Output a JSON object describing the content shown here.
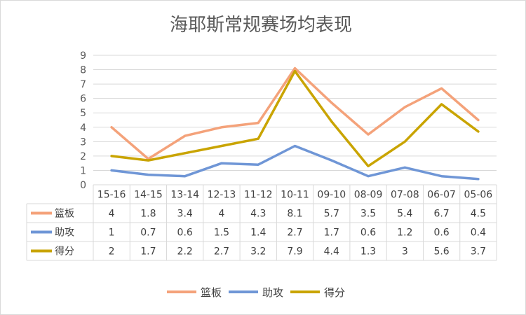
{
  "chart_data": {
    "type": "line",
    "title": "海耶斯常规赛场均表现",
    "categories": [
      "15-16",
      "14-15",
      "13-14",
      "12-13",
      "11-12",
      "10-11",
      "09-10",
      "08-09",
      "07-08",
      "06-07",
      "05-06"
    ],
    "ylim": [
      0,
      9
    ],
    "yticks": [
      "0",
      "1",
      "2",
      "3",
      "4",
      "5",
      "6",
      "7",
      "8",
      "9"
    ],
    "grid": true,
    "legend": "bottom",
    "data_table": true,
    "series": [
      {
        "name": "篮板",
        "color": "#f4a27a",
        "values": [
          4,
          1.8,
          3.4,
          4,
          4.3,
          8.1,
          5.7,
          3.5,
          5.4,
          6.7,
          4.5
        ],
        "labels": [
          "4",
          "1.8",
          "3.4",
          "4",
          "4.3",
          "8.1",
          "5.7",
          "3.5",
          "5.4",
          "6.7",
          "4.5"
        ]
      },
      {
        "name": "助攻",
        "color": "#6f96d6",
        "values": [
          1,
          0.7,
          0.6,
          1.5,
          1.4,
          2.7,
          1.7,
          0.6,
          1.2,
          0.6,
          0.4
        ],
        "labels": [
          "1",
          "0.7",
          "0.6",
          "1.5",
          "1.4",
          "2.7",
          "1.7",
          "0.6",
          "1.2",
          "0.6",
          "0.4"
        ]
      },
      {
        "name": "得分",
        "color": "#c9a400",
        "values": [
          2,
          1.7,
          2.2,
          2.7,
          3.2,
          7.9,
          4.4,
          1.3,
          3,
          5.6,
          3.7
        ],
        "labels": [
          "2",
          "1.7",
          "2.2",
          "2.7",
          "3.2",
          "7.9",
          "4.4",
          "1.3",
          "3",
          "5.6",
          "3.7"
        ]
      }
    ]
  }
}
